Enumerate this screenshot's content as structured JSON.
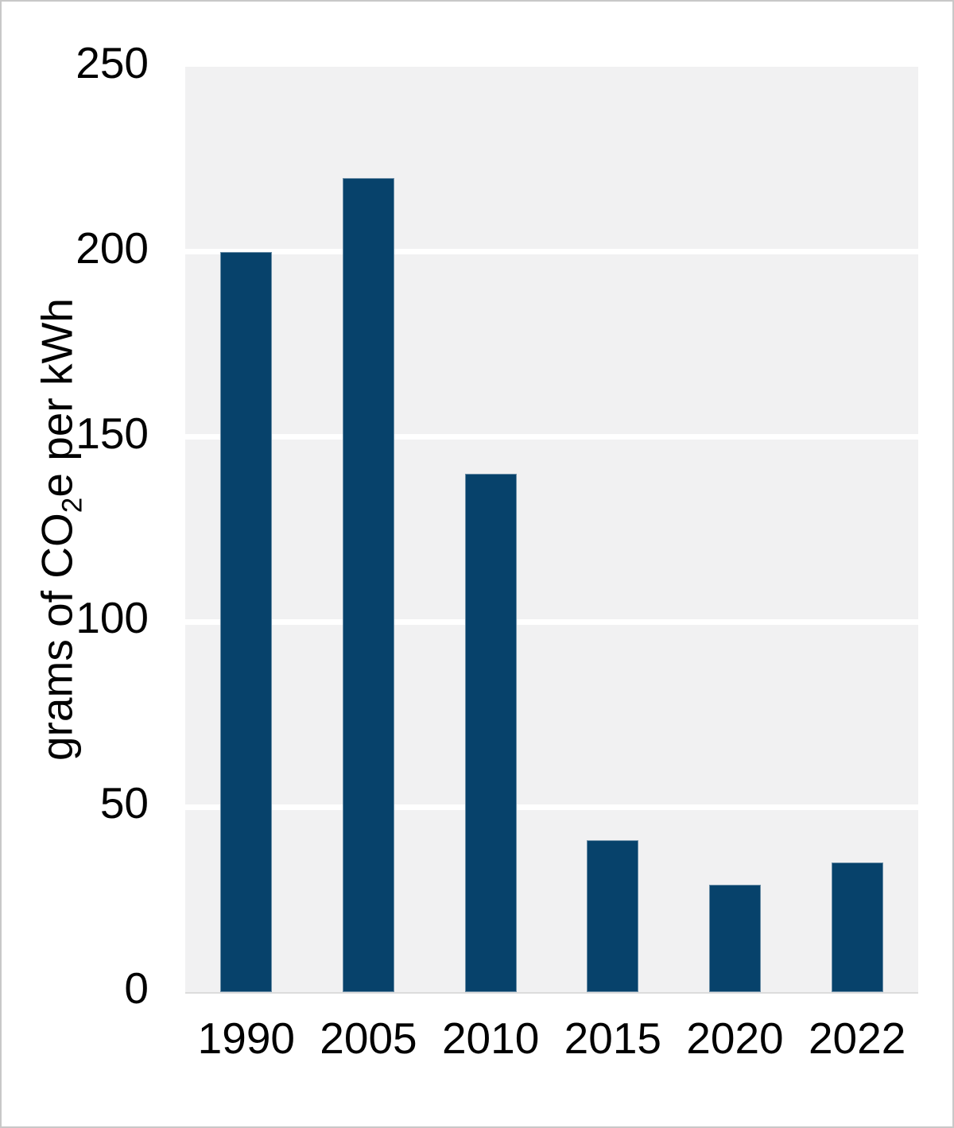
{
  "figure": {
    "background_color": "#ffffff",
    "border_color": "#c8c8c8",
    "text_color": "#000000"
  },
  "chart_data": {
    "type": "bar",
    "categories": [
      "1990",
      "2005",
      "2010",
      "2015",
      "2020",
      "2022"
    ],
    "values": [
      200,
      220,
      140,
      41,
      29,
      35
    ],
    "title": "",
    "xlabel": "",
    "ylabel": "grams of CO₂e per kWh",
    "ylabel_parts": {
      "prefix": "grams of CO",
      "sub": "2",
      "suffix": "e per kWh"
    },
    "ylim": [
      0,
      250
    ],
    "yticks": [
      0,
      50,
      100,
      150,
      200,
      250
    ],
    "grid": true,
    "legend": false,
    "bar_color": "#07426b",
    "plot_background_color": "#f1f1f2",
    "gridline_color": "#ffffff",
    "baseline_color": "#dcdcdc"
  }
}
